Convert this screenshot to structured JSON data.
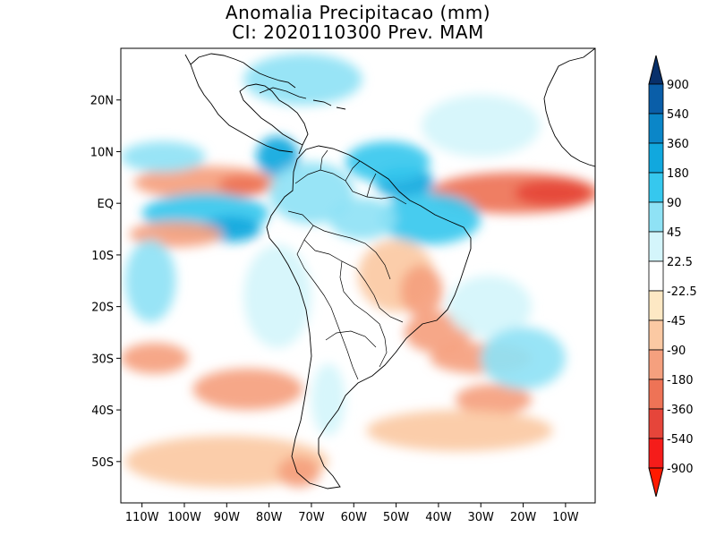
{
  "title": "Anomalia Precipitacao (mm)",
  "subtitle": "CI: 2020110300 Prev. MAM",
  "map": {
    "projection": "lat-lon",
    "lon_range": [
      -115,
      -3
    ],
    "lat_range": [
      -58,
      30
    ],
    "lon_ticks": [
      "110W",
      "100W",
      "90W",
      "80W",
      "70W",
      "60W",
      "50W",
      "40W",
      "30W",
      "20W",
      "10W"
    ],
    "lat_ticks": [
      "20N",
      "10N",
      "EQ",
      "10S",
      "20S",
      "30S",
      "40S",
      "50S"
    ]
  },
  "colorbar": {
    "labels": [
      "900",
      "540",
      "360",
      "180",
      "90",
      "45",
      "22.5",
      "-22.5",
      "-45",
      "-90",
      "-180",
      "-360",
      "-540",
      "-900"
    ],
    "colors": [
      "#08306b",
      "#0a5ea8",
      "#0b86c8",
      "#11a8de",
      "#36c8ee",
      "#8fe2f5",
      "#d4f5fb",
      "#ffffff",
      "#fde8c4",
      "#fbc9a3",
      "#f5a07e",
      "#ee7356",
      "#e6453a",
      "#f51c1a",
      "#ff1a00"
    ]
  },
  "chart_data": {
    "type": "heatmap",
    "title": "Anomalia Precipitacao (mm)",
    "subtitle": "CI: 2020110300 Prev. MAM",
    "xlim": [
      -115,
      -3
    ],
    "ylim": [
      -58,
      30
    ],
    "x_ticks": [
      -110,
      -100,
      -90,
      -80,
      -70,
      -60,
      -50,
      -40,
      -30,
      -20,
      -10
    ],
    "y_ticks": [
      20,
      10,
      0,
      -10,
      -20,
      -30,
      -40,
      -50
    ],
    "levels": [
      -900,
      -540,
      -360,
      -180,
      -90,
      -45,
      -22.5,
      22.5,
      45,
      90,
      180,
      360,
      540,
      900
    ],
    "blobs": [
      {
        "lon": -95,
        "lat": 4,
        "rx": 17,
        "ry": 3.2,
        "v": -160
      },
      {
        "lon": -86,
        "lat": 3.5,
        "rx": 6,
        "ry": 2,
        "v": -340
      },
      {
        "lon": -22,
        "lat": 2,
        "rx": 20,
        "ry": 4,
        "v": -200
      },
      {
        "lon": -13,
        "lat": 2,
        "rx": 9,
        "ry": 2.5,
        "v": -420
      },
      {
        "lon": -95,
        "lat": -2,
        "rx": 15,
        "ry": 4,
        "v": 140
      },
      {
        "lon": -89,
        "lat": -5,
        "rx": 7,
        "ry": 2.5,
        "v": 210
      },
      {
        "lon": -105,
        "lat": 9,
        "rx": 10,
        "ry": 3,
        "v": 60
      },
      {
        "lon": -78,
        "lat": 9,
        "rx": 5,
        "ry": 4,
        "v": 200
      },
      {
        "lon": -48,
        "lat": 4,
        "rx": 7,
        "ry": 3,
        "v": 260
      },
      {
        "lon": -52,
        "lat": 8,
        "rx": 10,
        "ry": 4,
        "v": 130
      },
      {
        "lon": -42,
        "lat": -3,
        "rx": 12,
        "ry": 5,
        "v": 180
      },
      {
        "lon": -72,
        "lat": 24,
        "rx": 14,
        "ry": 5,
        "v": 90
      },
      {
        "lon": -70,
        "lat": 2,
        "rx": 10,
        "ry": 6,
        "v": 70
      },
      {
        "lon": -58,
        "lat": -3,
        "rx": 8,
        "ry": 4,
        "v": 60
      },
      {
        "lon": -50,
        "lat": -14,
        "rx": 9,
        "ry": 7,
        "v": -70
      },
      {
        "lon": -44,
        "lat": -17,
        "rx": 5,
        "ry": 5,
        "v": -110
      },
      {
        "lon": -40,
        "lat": -25,
        "rx": 8,
        "ry": 4,
        "v": -150
      },
      {
        "lon": -30,
        "lat": -30,
        "rx": 12,
        "ry": 3,
        "v": -130
      },
      {
        "lon": -27,
        "lat": -38,
        "rx": 9,
        "ry": 3,
        "v": -160
      },
      {
        "lon": -85,
        "lat": -36,
        "rx": 13,
        "ry": 4,
        "v": -150
      },
      {
        "lon": -107,
        "lat": -30,
        "rx": 8,
        "ry": 3,
        "v": -110
      },
      {
        "lon": -102,
        "lat": -6,
        "rx": 11,
        "ry": 2.5,
        "v": -90
      },
      {
        "lon": -90,
        "lat": -50,
        "rx": 24,
        "ry": 5,
        "v": -50
      },
      {
        "lon": -73,
        "lat": -52,
        "rx": 5,
        "ry": 3,
        "v": -110
      },
      {
        "lon": -35,
        "lat": -44,
        "rx": 22,
        "ry": 4,
        "v": -55
      },
      {
        "lon": -78,
        "lat": -18,
        "rx": 8,
        "ry": 10,
        "v": 40
      },
      {
        "lon": -108,
        "lat": -15,
        "rx": 6,
        "ry": 8,
        "v": 50
      },
      {
        "lon": -66,
        "lat": -38,
        "rx": 4,
        "ry": 7,
        "v": 40
      },
      {
        "lon": -28,
        "lat": -20,
        "rx": 10,
        "ry": 6,
        "v": 40
      },
      {
        "lon": -20,
        "lat": -30,
        "rx": 10,
        "ry": 6,
        "v": 50
      },
      {
        "lon": -30,
        "lat": 15,
        "rx": 14,
        "ry": 6,
        "v": 30
      }
    ]
  }
}
